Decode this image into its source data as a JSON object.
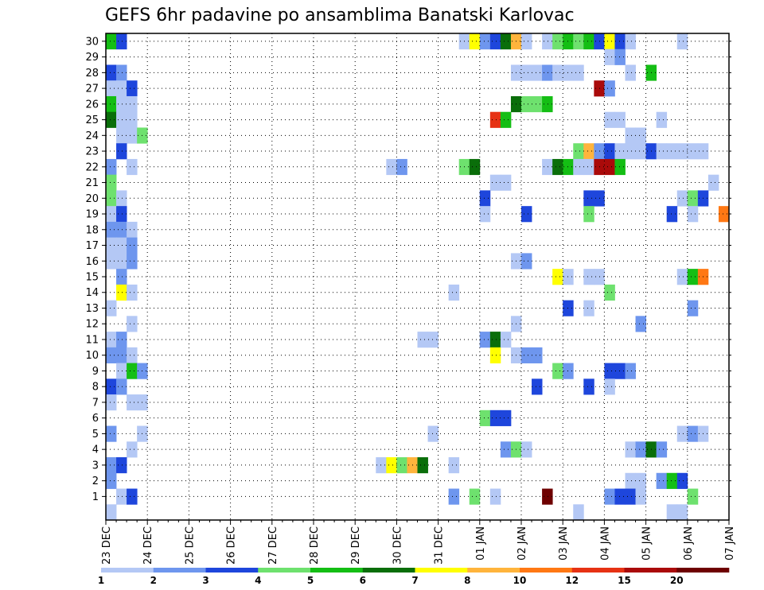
{
  "chart_data": {
    "type": "heatmap",
    "title": "GEFS 6hr padavine po ansamblima Banatski Karlovac",
    "xlabel": "",
    "ylabel": "",
    "x_tick_labels": [
      "23 DEC",
      "24 DEC",
      "25 DEC",
      "26 DEC",
      "27 DEC",
      "28 DEC",
      "29 DEC",
      "30 DEC",
      "31 DEC",
      "01 JAN",
      "02 JAN",
      "03 JAN",
      "04 JAN",
      "05 JAN",
      "06 JAN",
      "07 JAN"
    ],
    "y_tick_labels": [
      1,
      2,
      3,
      4,
      5,
      6,
      7,
      8,
      9,
      10,
      11,
      12,
      13,
      14,
      15,
      16,
      17,
      18,
      19,
      20,
      21,
      22,
      23,
      24,
      25,
      26,
      27,
      28,
      29,
      30
    ],
    "ylim": [
      0,
      30
    ],
    "x_steps_per_day": 4,
    "x_range_steps": [
      0,
      60
    ],
    "grid": true,
    "colorbar": {
      "labels": [
        "1",
        "2",
        "3",
        "4",
        "5",
        "6",
        "7",
        "8",
        "10",
        "12",
        "15",
        "20"
      ],
      "colors": [
        "#b4c8f5",
        "#6e96ee",
        "#1e46dc",
        "#6ee16e",
        "#14be14",
        "#0a6e0a",
        "#ffff00",
        "#ffb43c",
        "#ff7814",
        "#e63214",
        "#aa0a0a",
        "#6e0000"
      ]
    },
    "cells_format": [
      "member",
      "time_step",
      "class_index"
    ],
    "cells": [
      [
        30,
        0,
        4
      ],
      [
        30,
        1,
        2
      ],
      [
        30,
        34,
        0
      ],
      [
        30,
        35,
        6
      ],
      [
        30,
        36,
        1
      ],
      [
        30,
        37,
        2
      ],
      [
        30,
        38,
        5
      ],
      [
        30,
        39,
        7
      ],
      [
        30,
        40,
        0
      ],
      [
        30,
        42,
        0
      ],
      [
        30,
        43,
        3
      ],
      [
        30,
        44,
        4
      ],
      [
        30,
        45,
        3
      ],
      [
        30,
        46,
        4
      ],
      [
        30,
        47,
        2
      ],
      [
        30,
        48,
        6
      ],
      [
        30,
        49,
        2
      ],
      [
        30,
        50,
        0
      ],
      [
        30,
        55,
        0
      ],
      [
        29,
        48,
        0
      ],
      [
        29,
        49,
        1
      ],
      [
        28,
        0,
        2
      ],
      [
        28,
        1,
        1
      ],
      [
        28,
        39,
        0
      ],
      [
        28,
        40,
        0
      ],
      [
        28,
        41,
        0
      ],
      [
        28,
        42,
        1
      ],
      [
        28,
        43,
        0
      ],
      [
        28,
        44,
        0
      ],
      [
        28,
        45,
        0
      ],
      [
        28,
        50,
        0
      ],
      [
        28,
        52,
        4
      ],
      [
        27,
        0,
        0
      ],
      [
        27,
        1,
        0
      ],
      [
        27,
        2,
        2
      ],
      [
        27,
        47,
        10
      ],
      [
        27,
        48,
        1
      ],
      [
        26,
        0,
        4
      ],
      [
        26,
        1,
        0
      ],
      [
        26,
        2,
        0
      ],
      [
        26,
        39,
        5
      ],
      [
        26,
        40,
        3
      ],
      [
        26,
        41,
        3
      ],
      [
        26,
        42,
        4
      ],
      [
        25,
        0,
        5
      ],
      [
        25,
        1,
        0
      ],
      [
        25,
        2,
        0
      ],
      [
        25,
        37,
        9
      ],
      [
        25,
        38,
        4
      ],
      [
        25,
        48,
        0
      ],
      [
        25,
        49,
        0
      ],
      [
        25,
        53,
        0
      ],
      [
        24,
        1,
        0
      ],
      [
        24,
        2,
        0
      ],
      [
        24,
        3,
        3
      ],
      [
        24,
        50,
        0
      ],
      [
        24,
        51,
        0
      ],
      [
        23,
        1,
        2
      ],
      [
        23,
        45,
        3
      ],
      [
        23,
        46,
        7
      ],
      [
        23,
        47,
        1
      ],
      [
        23,
        48,
        2
      ],
      [
        23,
        49,
        0
      ],
      [
        23,
        50,
        0
      ],
      [
        23,
        51,
        0
      ],
      [
        23,
        52,
        2
      ],
      [
        23,
        53,
        0
      ],
      [
        23,
        54,
        0
      ],
      [
        23,
        55,
        0
      ],
      [
        23,
        56,
        0
      ],
      [
        23,
        57,
        0
      ],
      [
        22,
        0,
        1
      ],
      [
        22,
        2,
        0
      ],
      [
        22,
        27,
        0
      ],
      [
        22,
        28,
        1
      ],
      [
        22,
        34,
        3
      ],
      [
        22,
        35,
        5
      ],
      [
        22,
        42,
        0
      ],
      [
        22,
        43,
        5
      ],
      [
        22,
        44,
        4
      ],
      [
        22,
        45,
        0
      ],
      [
        22,
        46,
        0
      ],
      [
        22,
        47,
        10
      ],
      [
        22,
        48,
        10
      ],
      [
        22,
        49,
        4
      ],
      [
        21,
        0,
        3
      ],
      [
        21,
        37,
        0
      ],
      [
        21,
        38,
        0
      ],
      [
        21,
        58,
        0
      ],
      [
        20,
        0,
        3
      ],
      [
        20,
        1,
        0
      ],
      [
        20,
        36,
        2
      ],
      [
        20,
        46,
        2
      ],
      [
        20,
        47,
        2
      ],
      [
        20,
        55,
        0
      ],
      [
        20,
        56,
        3
      ],
      [
        20,
        57,
        2
      ],
      [
        19,
        0,
        0
      ],
      [
        19,
        1,
        2
      ],
      [
        19,
        36,
        0
      ],
      [
        19,
        40,
        2
      ],
      [
        19,
        46,
        3
      ],
      [
        19,
        54,
        2
      ],
      [
        19,
        56,
        0
      ],
      [
        19,
        59,
        8
      ],
      [
        18,
        0,
        1
      ],
      [
        18,
        1,
        1
      ],
      [
        18,
        2,
        0
      ],
      [
        17,
        0,
        0
      ],
      [
        17,
        1,
        0
      ],
      [
        17,
        2,
        1
      ],
      [
        16,
        0,
        0
      ],
      [
        16,
        1,
        0
      ],
      [
        16,
        2,
        1
      ],
      [
        16,
        39,
        0
      ],
      [
        16,
        40,
        1
      ],
      [
        15,
        1,
        1
      ],
      [
        15,
        43,
        6
      ],
      [
        15,
        44,
        0
      ],
      [
        15,
        46,
        0
      ],
      [
        15,
        47,
        0
      ],
      [
        15,
        55,
        0
      ],
      [
        15,
        56,
        4
      ],
      [
        15,
        57,
        8
      ],
      [
        14,
        1,
        6
      ],
      [
        14,
        2,
        0
      ],
      [
        14,
        33,
        0
      ],
      [
        14,
        48,
        3
      ],
      [
        13,
        0,
        0
      ],
      [
        13,
        44,
        2
      ],
      [
        13,
        46,
        0
      ],
      [
        13,
        56,
        1
      ],
      [
        12,
        2,
        0
      ],
      [
        12,
        39,
        0
      ],
      [
        12,
        51,
        1
      ],
      [
        11,
        0,
        0
      ],
      [
        11,
        1,
        1
      ],
      [
        11,
        30,
        0
      ],
      [
        11,
        31,
        0
      ],
      [
        11,
        36,
        1
      ],
      [
        11,
        37,
        5
      ],
      [
        11,
        38,
        0
      ],
      [
        10,
        0,
        1
      ],
      [
        10,
        1,
        1
      ],
      [
        10,
        2,
        0
      ],
      [
        10,
        37,
        6
      ],
      [
        10,
        39,
        0
      ],
      [
        10,
        40,
        1
      ],
      [
        10,
        41,
        1
      ],
      [
        9,
        1,
        0
      ],
      [
        9,
        2,
        4
      ],
      [
        9,
        3,
        1
      ],
      [
        9,
        43,
        3
      ],
      [
        9,
        44,
        1
      ],
      [
        9,
        48,
        2
      ],
      [
        9,
        49,
        2
      ],
      [
        9,
        50,
        1
      ],
      [
        8,
        0,
        2
      ],
      [
        8,
        1,
        1
      ],
      [
        8,
        41,
        2
      ],
      [
        8,
        46,
        2
      ],
      [
        8,
        48,
        0
      ],
      [
        7,
        0,
        0
      ],
      [
        7,
        2,
        0
      ],
      [
        7,
        3,
        0
      ],
      [
        6,
        36,
        3
      ],
      [
        6,
        37,
        2
      ],
      [
        6,
        38,
        2
      ],
      [
        5,
        0,
        1
      ],
      [
        5,
        3,
        0
      ],
      [
        5,
        31,
        0
      ],
      [
        5,
        55,
        0
      ],
      [
        5,
        56,
        1
      ],
      [
        5,
        57,
        0
      ],
      [
        4,
        2,
        0
      ],
      [
        4,
        38,
        1
      ],
      [
        4,
        39,
        3
      ],
      [
        4,
        40,
        0
      ],
      [
        4,
        50,
        0
      ],
      [
        4,
        51,
        1
      ],
      [
        4,
        52,
        5
      ],
      [
        4,
        53,
        1
      ],
      [
        3,
        0,
        1
      ],
      [
        3,
        1,
        2
      ],
      [
        3,
        26,
        0
      ],
      [
        3,
        27,
        6
      ],
      [
        3,
        28,
        3
      ],
      [
        3,
        29,
        7
      ],
      [
        3,
        30,
        5
      ],
      [
        3,
        33,
        0
      ],
      [
        2,
        0,
        1
      ],
      [
        2,
        50,
        0
      ],
      [
        2,
        51,
        0
      ],
      [
        2,
        53,
        1
      ],
      [
        2,
        54,
        4
      ],
      [
        2,
        55,
        2
      ],
      [
        1,
        1,
        0
      ],
      [
        1,
        2,
        2
      ],
      [
        1,
        33,
        1
      ],
      [
        1,
        35,
        3
      ],
      [
        1,
        37,
        0
      ],
      [
        1,
        42,
        11
      ],
      [
        1,
        48,
        1
      ],
      [
        1,
        49,
        2
      ],
      [
        1,
        50,
        2
      ],
      [
        1,
        51,
        0
      ],
      [
        1,
        56,
        3
      ],
      [
        0,
        0,
        0
      ],
      [
        0,
        45,
        0
      ],
      [
        0,
        54,
        0
      ],
      [
        0,
        55,
        0
      ]
    ]
  }
}
